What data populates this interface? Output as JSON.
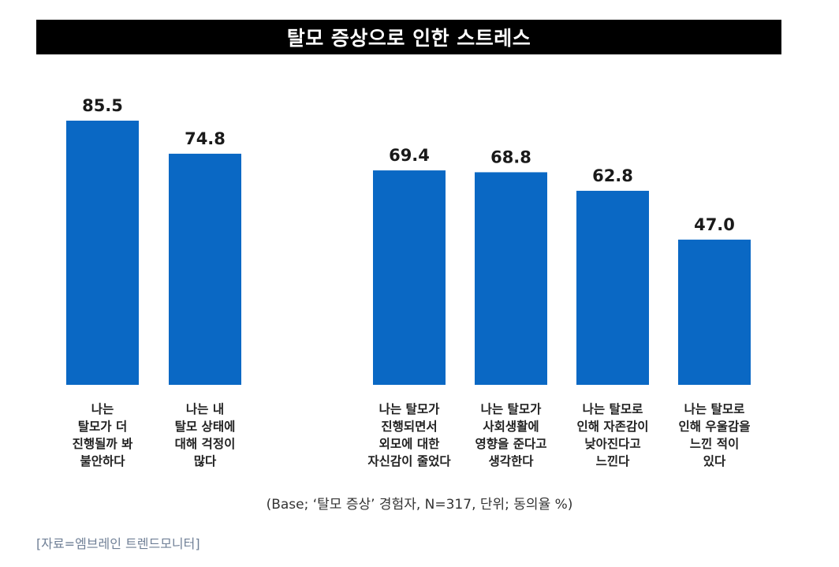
{
  "header": {
    "title": "탈모 증상으로 인한 스트레스"
  },
  "colors": {
    "bar": "#0a68c4",
    "title_bg": "#000000",
    "title_text": "#ffffff"
  },
  "chart_data": {
    "type": "bar",
    "title": "탈모 증상으로 인한 스트레스",
    "xlabel": "",
    "ylabel": "",
    "ylim": [
      0,
      100
    ],
    "grid": false,
    "legend": "none",
    "categories": [
      "나는 탈모가 더 진행될까 봐 불안하다",
      "나는 내 탈모 상태에 대해 걱정이 많다",
      "나는 탈모가 진행되면서 외모에 대한 자신감이 줄었다",
      "나는 탈모가 사회생활에 영향을 준다고 생각한다",
      "나는 탈모로 인해 자존감이 낮아진다고 느낀다",
      "나는 탈모로 인해 우울감을 느낀 적이 있다"
    ],
    "category_lines": [
      [
        "나는",
        "탈모가 더",
        "진행될까 봐",
        "불안하다"
      ],
      [
        "나는 내",
        "탈모 상태에",
        "대해 걱정이",
        "많다"
      ],
      [
        "나는 탈모가",
        "진행되면서",
        "외모에 대한",
        "자신감이 줄었다"
      ],
      [
        "나는 탈모가",
        "사회생활에",
        "영향을 준다고",
        "생각한다"
      ],
      [
        "나는 탈모로",
        "인해 자존감이",
        "낮아진다고",
        "느낀다"
      ],
      [
        "나는 탈모로",
        "인해 우울감을",
        "느낀 적이",
        "있다"
      ]
    ],
    "values": [
      85.5,
      74.8,
      69.4,
      68.8,
      62.8,
      47.0
    ],
    "value_labels": [
      "85.5",
      "74.8",
      "69.4",
      "68.8",
      "62.8",
      "47.0"
    ]
  },
  "footer": {
    "base_note": "(Base; ‘탈모 증상’ 경험자, N=317, 단위; 동의율 %)",
    "source": "[자료=엠브레인 트렌드모니터]"
  }
}
